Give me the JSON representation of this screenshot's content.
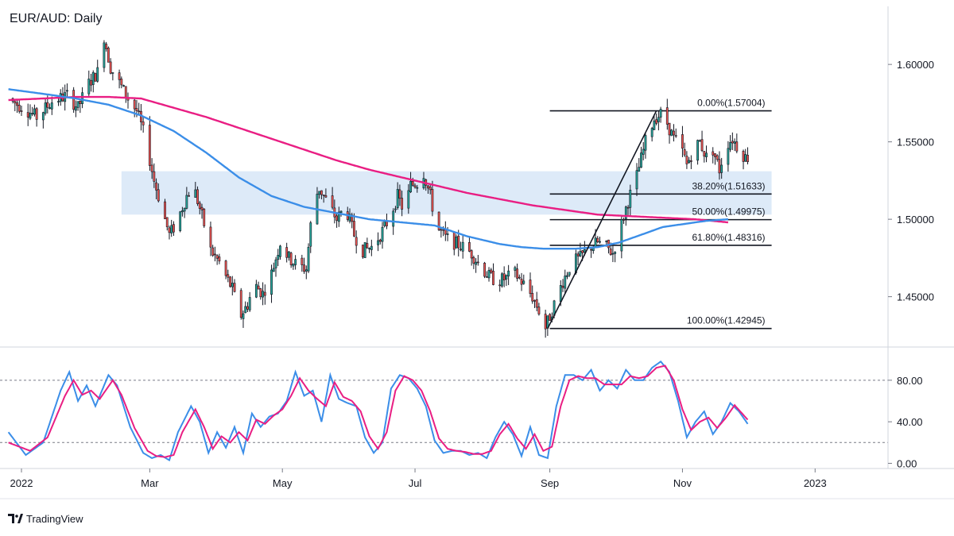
{
  "chart_data": {
    "type": "candlestick",
    "title": "EUR/AUD: Daily",
    "brand": "TradingView",
    "colors": {
      "up": "#26a69a",
      "down": "#ef5350",
      "candle": "#131722",
      "sma_fast": "#3b8ee8",
      "sma_slow": "#e91e83",
      "zone": "#ddeaf8",
      "stoch_k": "#3b8ee8",
      "stoch_d": "#e91e83"
    },
    "x_ticks": [
      "2022",
      "Mar",
      "May",
      "Jul",
      "Sep",
      "Nov",
      "2023"
    ],
    "x_tick_days": [
      0,
      59,
      120,
      181,
      243,
      304,
      365
    ],
    "price_axis": {
      "ylim": [
        1.4175,
        1.6375
      ],
      "ticks": [
        "1.60000",
        "1.55000",
        "1.50000",
        "1.45000"
      ],
      "tick_values": [
        1.6,
        1.55,
        1.5,
        1.45
      ]
    },
    "osc_axis": {
      "ylim": [
        -5,
        112
      ],
      "ticks": [
        "80.00",
        "40.00",
        "0.00"
      ],
      "tick_values": [
        80,
        40,
        0
      ],
      "levels": [
        80,
        20
      ]
    },
    "zone": {
      "x_start": 46,
      "x_end": 345,
      "high": 1.531,
      "low": 1.503
    },
    "fibonacci": {
      "x_start": 243,
      "x_end": 345,
      "levels": [
        {
          "label": "0.00%(1.57004)",
          "value": 1.57004
        },
        {
          "label": "38.20%(1.51633)",
          "value": 1.51633
        },
        {
          "label": "50.00%(1.49975)",
          "value": 1.49975
        },
        {
          "label": "61.80%(1.48316)",
          "value": 1.48316
        },
        {
          "label": "100.00%(1.42945)",
          "value": 1.42945
        }
      ]
    },
    "trendline": [
      [
        242,
        1.42945
      ],
      [
        292,
        1.57004
      ]
    ],
    "price_waypoints": [
      [
        -6,
        1.578
      ],
      [
        2,
        1.572
      ],
      [
        8,
        1.566
      ],
      [
        15,
        1.576
      ],
      [
        22,
        1.58
      ],
      [
        27,
        1.572
      ],
      [
        32,
        1.588
      ],
      [
        36,
        1.595
      ],
      [
        39,
        1.618
      ],
      [
        42,
        1.598
      ],
      [
        46,
        1.588
      ],
      [
        50,
        1.578
      ],
      [
        54,
        1.57
      ],
      [
        58,
        1.552
      ],
      [
        62,
        1.525
      ],
      [
        66,
        1.505
      ],
      [
        69,
        1.49
      ],
      [
        72,
        1.497
      ],
      [
        77,
        1.515
      ],
      [
        80,
        1.522
      ],
      [
        84,
        1.502
      ],
      [
        88,
        1.48
      ],
      [
        92,
        1.472
      ],
      [
        95,
        1.463
      ],
      [
        98,
        1.455
      ],
      [
        100,
        1.445
      ],
      [
        102,
        1.438
      ],
      [
        105,
        1.445
      ],
      [
        108,
        1.458
      ],
      [
        112,
        1.452
      ],
      [
        116,
        1.465
      ],
      [
        120,
        1.485
      ],
      [
        124,
        1.475
      ],
      [
        128,
        1.47
      ],
      [
        132,
        1.468
      ],
      [
        135,
        1.51
      ],
      [
        138,
        1.52
      ],
      [
        142,
        1.51
      ],
      [
        146,
        1.5
      ],
      [
        150,
        1.508
      ],
      [
        154,
        1.49
      ],
      [
        158,
        1.48
      ],
      [
        162,
        1.482
      ],
      [
        166,
        1.49
      ],
      [
        170,
        1.5
      ],
      [
        174,
        1.515
      ],
      [
        177,
        1.505
      ],
      [
        180,
        1.522
      ],
      [
        184,
        1.524
      ],
      [
        186,
        1.53
      ],
      [
        189,
        1.515
      ],
      [
        192,
        1.495
      ],
      [
        196,
        1.488
      ],
      [
        200,
        1.485
      ],
      [
        204,
        1.482
      ],
      [
        208,
        1.478
      ],
      [
        212,
        1.47
      ],
      [
        216,
        1.463
      ],
      [
        220,
        1.46
      ],
      [
        224,
        1.462
      ],
      [
        228,
        1.465
      ],
      [
        232,
        1.458
      ],
      [
        236,
        1.45
      ],
      [
        240,
        1.438
      ],
      [
        242,
        1.43
      ],
      [
        246,
        1.445
      ],
      [
        250,
        1.46
      ],
      [
        254,
        1.472
      ],
      [
        258,
        1.475
      ],
      [
        262,
        1.482
      ],
      [
        266,
        1.485
      ],
      [
        270,
        1.482
      ],
      [
        273,
        1.478
      ],
      [
        276,
        1.492
      ],
      [
        280,
        1.512
      ],
      [
        284,
        1.528
      ],
      [
        288,
        1.55
      ],
      [
        292,
        1.565
      ],
      [
        295,
        1.568
      ],
      [
        298,
        1.562
      ],
      [
        301,
        1.552
      ],
      [
        304,
        1.548
      ],
      [
        307,
        1.535
      ],
      [
        310,
        1.545
      ],
      [
        313,
        1.55
      ],
      [
        316,
        1.54
      ],
      [
        319,
        1.545
      ],
      [
        322,
        1.532
      ],
      [
        325,
        1.548
      ],
      [
        328,
        1.552
      ],
      [
        331,
        1.545
      ],
      [
        334,
        1.54
      ]
    ],
    "sma_fast_waypoints": [
      [
        -6,
        1.584
      ],
      [
        10,
        1.581
      ],
      [
        25,
        1.578
      ],
      [
        40,
        1.574
      ],
      [
        55,
        1.567
      ],
      [
        70,
        1.557
      ],
      [
        85,
        1.543
      ],
      [
        100,
        1.527
      ],
      [
        115,
        1.515
      ],
      [
        130,
        1.508
      ],
      [
        145,
        1.504
      ],
      [
        160,
        1.5
      ],
      [
        175,
        1.498
      ],
      [
        190,
        1.496
      ],
      [
        205,
        1.489
      ],
      [
        220,
        1.484
      ],
      [
        230,
        1.482
      ],
      [
        240,
        1.481
      ],
      [
        255,
        1.481
      ],
      [
        265,
        1.482
      ],
      [
        275,
        1.485
      ],
      [
        285,
        1.49
      ],
      [
        295,
        1.495
      ],
      [
        305,
        1.497
      ],
      [
        315,
        1.499
      ],
      [
        325,
        1.5
      ]
    ],
    "sma_slow_waypoints": [
      [
        -6,
        1.577
      ],
      [
        10,
        1.578
      ],
      [
        25,
        1.579
      ],
      [
        40,
        1.579
      ],
      [
        55,
        1.578
      ],
      [
        70,
        1.572
      ],
      [
        85,
        1.566
      ],
      [
        100,
        1.559
      ],
      [
        115,
        1.552
      ],
      [
        130,
        1.545
      ],
      [
        145,
        1.538
      ],
      [
        160,
        1.532
      ],
      [
        175,
        1.527
      ],
      [
        190,
        1.522
      ],
      [
        205,
        1.517
      ],
      [
        220,
        1.513
      ],
      [
        235,
        1.509
      ],
      [
        250,
        1.506
      ],
      [
        265,
        1.503
      ],
      [
        280,
        1.502
      ],
      [
        295,
        1.501
      ],
      [
        310,
        1.5
      ],
      [
        325,
        1.498
      ]
    ],
    "stoch_k_waypoints": [
      [
        -6,
        30
      ],
      [
        2,
        8
      ],
      [
        10,
        20
      ],
      [
        18,
        70
      ],
      [
        22,
        88
      ],
      [
        26,
        60
      ],
      [
        30,
        75
      ],
      [
        34,
        55
      ],
      [
        40,
        85
      ],
      [
        44,
        75
      ],
      [
        50,
        35
      ],
      [
        56,
        10
      ],
      [
        60,
        5
      ],
      [
        64,
        8
      ],
      [
        68,
        3
      ],
      [
        72,
        30
      ],
      [
        78,
        55
      ],
      [
        82,
        40
      ],
      [
        86,
        10
      ],
      [
        90,
        30
      ],
      [
        94,
        15
      ],
      [
        98,
        35
      ],
      [
        102,
        10
      ],
      [
        106,
        48
      ],
      [
        110,
        35
      ],
      [
        114,
        45
      ],
      [
        118,
        48
      ],
      [
        122,
        60
      ],
      [
        126,
        88
      ],
      [
        130,
        65
      ],
      [
        134,
        70
      ],
      [
        138,
        40
      ],
      [
        142,
        85
      ],
      [
        146,
        62
      ],
      [
        150,
        58
      ],
      [
        154,
        55
      ],
      [
        158,
        25
      ],
      [
        162,
        10
      ],
      [
        166,
        20
      ],
      [
        170,
        72
      ],
      [
        174,
        85
      ],
      [
        178,
        82
      ],
      [
        182,
        72
      ],
      [
        186,
        55
      ],
      [
        190,
        22
      ],
      [
        194,
        10
      ],
      [
        198,
        12
      ],
      [
        202,
        12
      ],
      [
        206,
        8
      ],
      [
        210,
        10
      ],
      [
        214,
        5
      ],
      [
        218,
        25
      ],
      [
        222,
        40
      ],
      [
        226,
        28
      ],
      [
        230,
        7
      ],
      [
        234,
        35
      ],
      [
        238,
        8
      ],
      [
        242,
        5
      ],
      [
        246,
        55
      ],
      [
        250,
        85
      ],
      [
        254,
        85
      ],
      [
        258,
        80
      ],
      [
        262,
        90
      ],
      [
        266,
        70
      ],
      [
        270,
        80
      ],
      [
        274,
        72
      ],
      [
        278,
        90
      ],
      [
        282,
        80
      ],
      [
        286,
        80
      ],
      [
        290,
        92
      ],
      [
        294,
        98
      ],
      [
        298,
        88
      ],
      [
        302,
        60
      ],
      [
        306,
        25
      ],
      [
        310,
        40
      ],
      [
        314,
        50
      ],
      [
        318,
        28
      ],
      [
        322,
        40
      ],
      [
        326,
        58
      ],
      [
        330,
        50
      ],
      [
        334,
        38
      ]
    ],
    "stoch_d_waypoints": [
      [
        -6,
        20
      ],
      [
        4,
        12
      ],
      [
        12,
        25
      ],
      [
        20,
        65
      ],
      [
        24,
        80
      ],
      [
        28,
        66
      ],
      [
        32,
        70
      ],
      [
        36,
        62
      ],
      [
        42,
        80
      ],
      [
        46,
        66
      ],
      [
        52,
        34
      ],
      [
        58,
        12
      ],
      [
        62,
        7
      ],
      [
        66,
        6
      ],
      [
        70,
        8
      ],
      [
        74,
        30
      ],
      [
        80,
        52
      ],
      [
        84,
        35
      ],
      [
        88,
        14
      ],
      [
        92,
        26
      ],
      [
        96,
        20
      ],
      [
        100,
        30
      ],
      [
        104,
        22
      ],
      [
        108,
        42
      ],
      [
        112,
        38
      ],
      [
        116,
        46
      ],
      [
        120,
        52
      ],
      [
        124,
        65
      ],
      [
        128,
        82
      ],
      [
        132,
        70
      ],
      [
        136,
        62
      ],
      [
        140,
        55
      ],
      [
        144,
        78
      ],
      [
        148,
        64
      ],
      [
        152,
        60
      ],
      [
        156,
        50
      ],
      [
        160,
        26
      ],
      [
        164,
        14
      ],
      [
        168,
        30
      ],
      [
        172,
        70
      ],
      [
        176,
        84
      ],
      [
        180,
        80
      ],
      [
        184,
        70
      ],
      [
        188,
        50
      ],
      [
        192,
        24
      ],
      [
        196,
        14
      ],
      [
        200,
        12
      ],
      [
        204,
        11
      ],
      [
        208,
        9
      ],
      [
        212,
        9
      ],
      [
        216,
        12
      ],
      [
        220,
        28
      ],
      [
        224,
        38
      ],
      [
        228,
        24
      ],
      [
        232,
        14
      ],
      [
        236,
        28
      ],
      [
        240,
        12
      ],
      [
        244,
        16
      ],
      [
        248,
        55
      ],
      [
        252,
        80
      ],
      [
        256,
        84
      ],
      [
        260,
        82
      ],
      [
        264,
        82
      ],
      [
        268,
        76
      ],
      [
        272,
        76
      ],
      [
        276,
        76
      ],
      [
        280,
        84
      ],
      [
        284,
        82
      ],
      [
        288,
        84
      ],
      [
        292,
        92
      ],
      [
        296,
        94
      ],
      [
        300,
        80
      ],
      [
        304,
        52
      ],
      [
        308,
        32
      ],
      [
        312,
        40
      ],
      [
        316,
        44
      ],
      [
        320,
        34
      ],
      [
        324,
        44
      ],
      [
        328,
        56
      ],
      [
        334,
        42
      ]
    ]
  }
}
